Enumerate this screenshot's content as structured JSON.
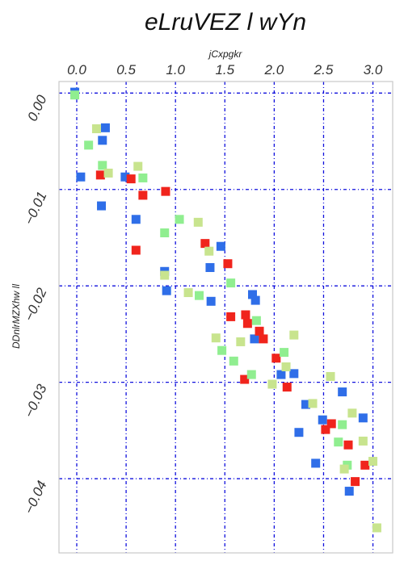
{
  "chart_data": {
    "type": "scatter",
    "title": "eLruVEZ l wYn",
    "xlabel": "jCxpgkr",
    "ylabel": "DDnlrMZXhw ll",
    "xlim": [
      -0.18,
      3.2
    ],
    "ylim": [
      -0.0477,
      0.0012
    ],
    "x_axis_position": "top",
    "y_inverted": true,
    "grid": true,
    "x_ticks": [
      0.0,
      0.5,
      1.0,
      1.5,
      2.0,
      2.5,
      3.0
    ],
    "x_tick_labels": [
      "0.0",
      "0.5",
      "1.0",
      "1.5",
      "2.0",
      "2.5",
      "3.0"
    ],
    "y_ticks": [
      0.0,
      -0.01,
      -0.02,
      -0.03,
      -0.04
    ],
    "y_tick_labels": [
      "0.00",
      "−0.01",
      "−0.02",
      "−0.03",
      "−0.04"
    ],
    "series": [
      {
        "color": "#2f6ee8",
        "points": [
          [
            -0.02,
            0.0001
          ],
          [
            0.04,
            -0.0087
          ],
          [
            0.26,
            -0.0049
          ],
          [
            0.29,
            -0.0036
          ],
          [
            0.25,
            -0.0117
          ],
          [
            0.49,
            -0.0087
          ],
          [
            0.6,
            -0.0131
          ],
          [
            0.89,
            -0.0185
          ],
          [
            0.91,
            -0.0205
          ],
          [
            1.35,
            -0.0181
          ],
          [
            1.46,
            -0.0159
          ],
          [
            1.36,
            -0.0216
          ],
          [
            1.78,
            -0.0209
          ],
          [
            1.81,
            -0.0215
          ],
          [
            1.8,
            -0.0255
          ],
          [
            2.07,
            -0.0292
          ],
          [
            2.2,
            -0.0291
          ],
          [
            2.32,
            -0.0323
          ],
          [
            2.25,
            -0.0352
          ],
          [
            2.42,
            -0.0384
          ],
          [
            2.49,
            -0.0339
          ],
          [
            2.69,
            -0.031
          ],
          [
            2.76,
            -0.0413
          ],
          [
            2.9,
            -0.0337
          ]
        ]
      },
      {
        "color": "#f0241c",
        "points": [
          [
            0.24,
            -0.0085
          ],
          [
            0.55,
            -0.0089
          ],
          [
            0.67,
            -0.0106
          ],
          [
            0.9,
            -0.0102
          ],
          [
            0.6,
            -0.0163
          ],
          [
            1.3,
            -0.0156
          ],
          [
            1.53,
            -0.0177
          ],
          [
            1.56,
            -0.0232
          ],
          [
            1.71,
            -0.023
          ],
          [
            1.73,
            -0.0239
          ],
          [
            1.85,
            -0.0247
          ],
          [
            1.89,
            -0.0255
          ],
          [
            1.7,
            -0.0297
          ],
          [
            2.02,
            -0.0275
          ],
          [
            2.13,
            -0.0305
          ],
          [
            2.52,
            -0.0349
          ],
          [
            2.58,
            -0.0343
          ],
          [
            2.75,
            -0.0365
          ],
          [
            2.82,
            -0.0403
          ],
          [
            2.92,
            -0.0386
          ]
        ]
      },
      {
        "color": "#90ee90",
        "points": [
          [
            -0.02,
            -0.0002
          ],
          [
            0.12,
            -0.0054
          ],
          [
            0.26,
            -0.0075
          ],
          [
            0.67,
            -0.0088
          ],
          [
            1.04,
            -0.0131
          ],
          [
            0.89,
            -0.0145
          ],
          [
            1.56,
            -0.0197
          ],
          [
            1.24,
            -0.021
          ],
          [
            1.47,
            -0.0267
          ],
          [
            1.59,
            -0.0278
          ],
          [
            1.82,
            -0.0236
          ],
          [
            1.77,
            -0.0292
          ],
          [
            2.1,
            -0.0269
          ],
          [
            2.69,
            -0.0344
          ],
          [
            2.65,
            -0.0362
          ],
          [
            2.74,
            -0.0386
          ]
        ]
      },
      {
        "color": "#c8e48e",
        "points": [
          [
            0.2,
            -0.0037
          ],
          [
            0.32,
            -0.0083
          ],
          [
            0.62,
            -0.0076
          ],
          [
            1.23,
            -0.0134
          ],
          [
            0.89,
            -0.0189
          ],
          [
            1.13,
            -0.0207
          ],
          [
            1.34,
            -0.0164
          ],
          [
            1.41,
            -0.0254
          ],
          [
            1.66,
            -0.0258
          ],
          [
            1.98,
            -0.0302
          ],
          [
            2.12,
            -0.0284
          ],
          [
            2.2,
            -0.0251
          ],
          [
            2.39,
            -0.0322
          ],
          [
            2.57,
            -0.0294
          ],
          [
            2.79,
            -0.0332
          ],
          [
            2.71,
            -0.039
          ],
          [
            2.9,
            -0.0361
          ],
          [
            3.0,
            -0.0382
          ],
          [
            3.04,
            -0.0451
          ]
        ]
      }
    ]
  }
}
